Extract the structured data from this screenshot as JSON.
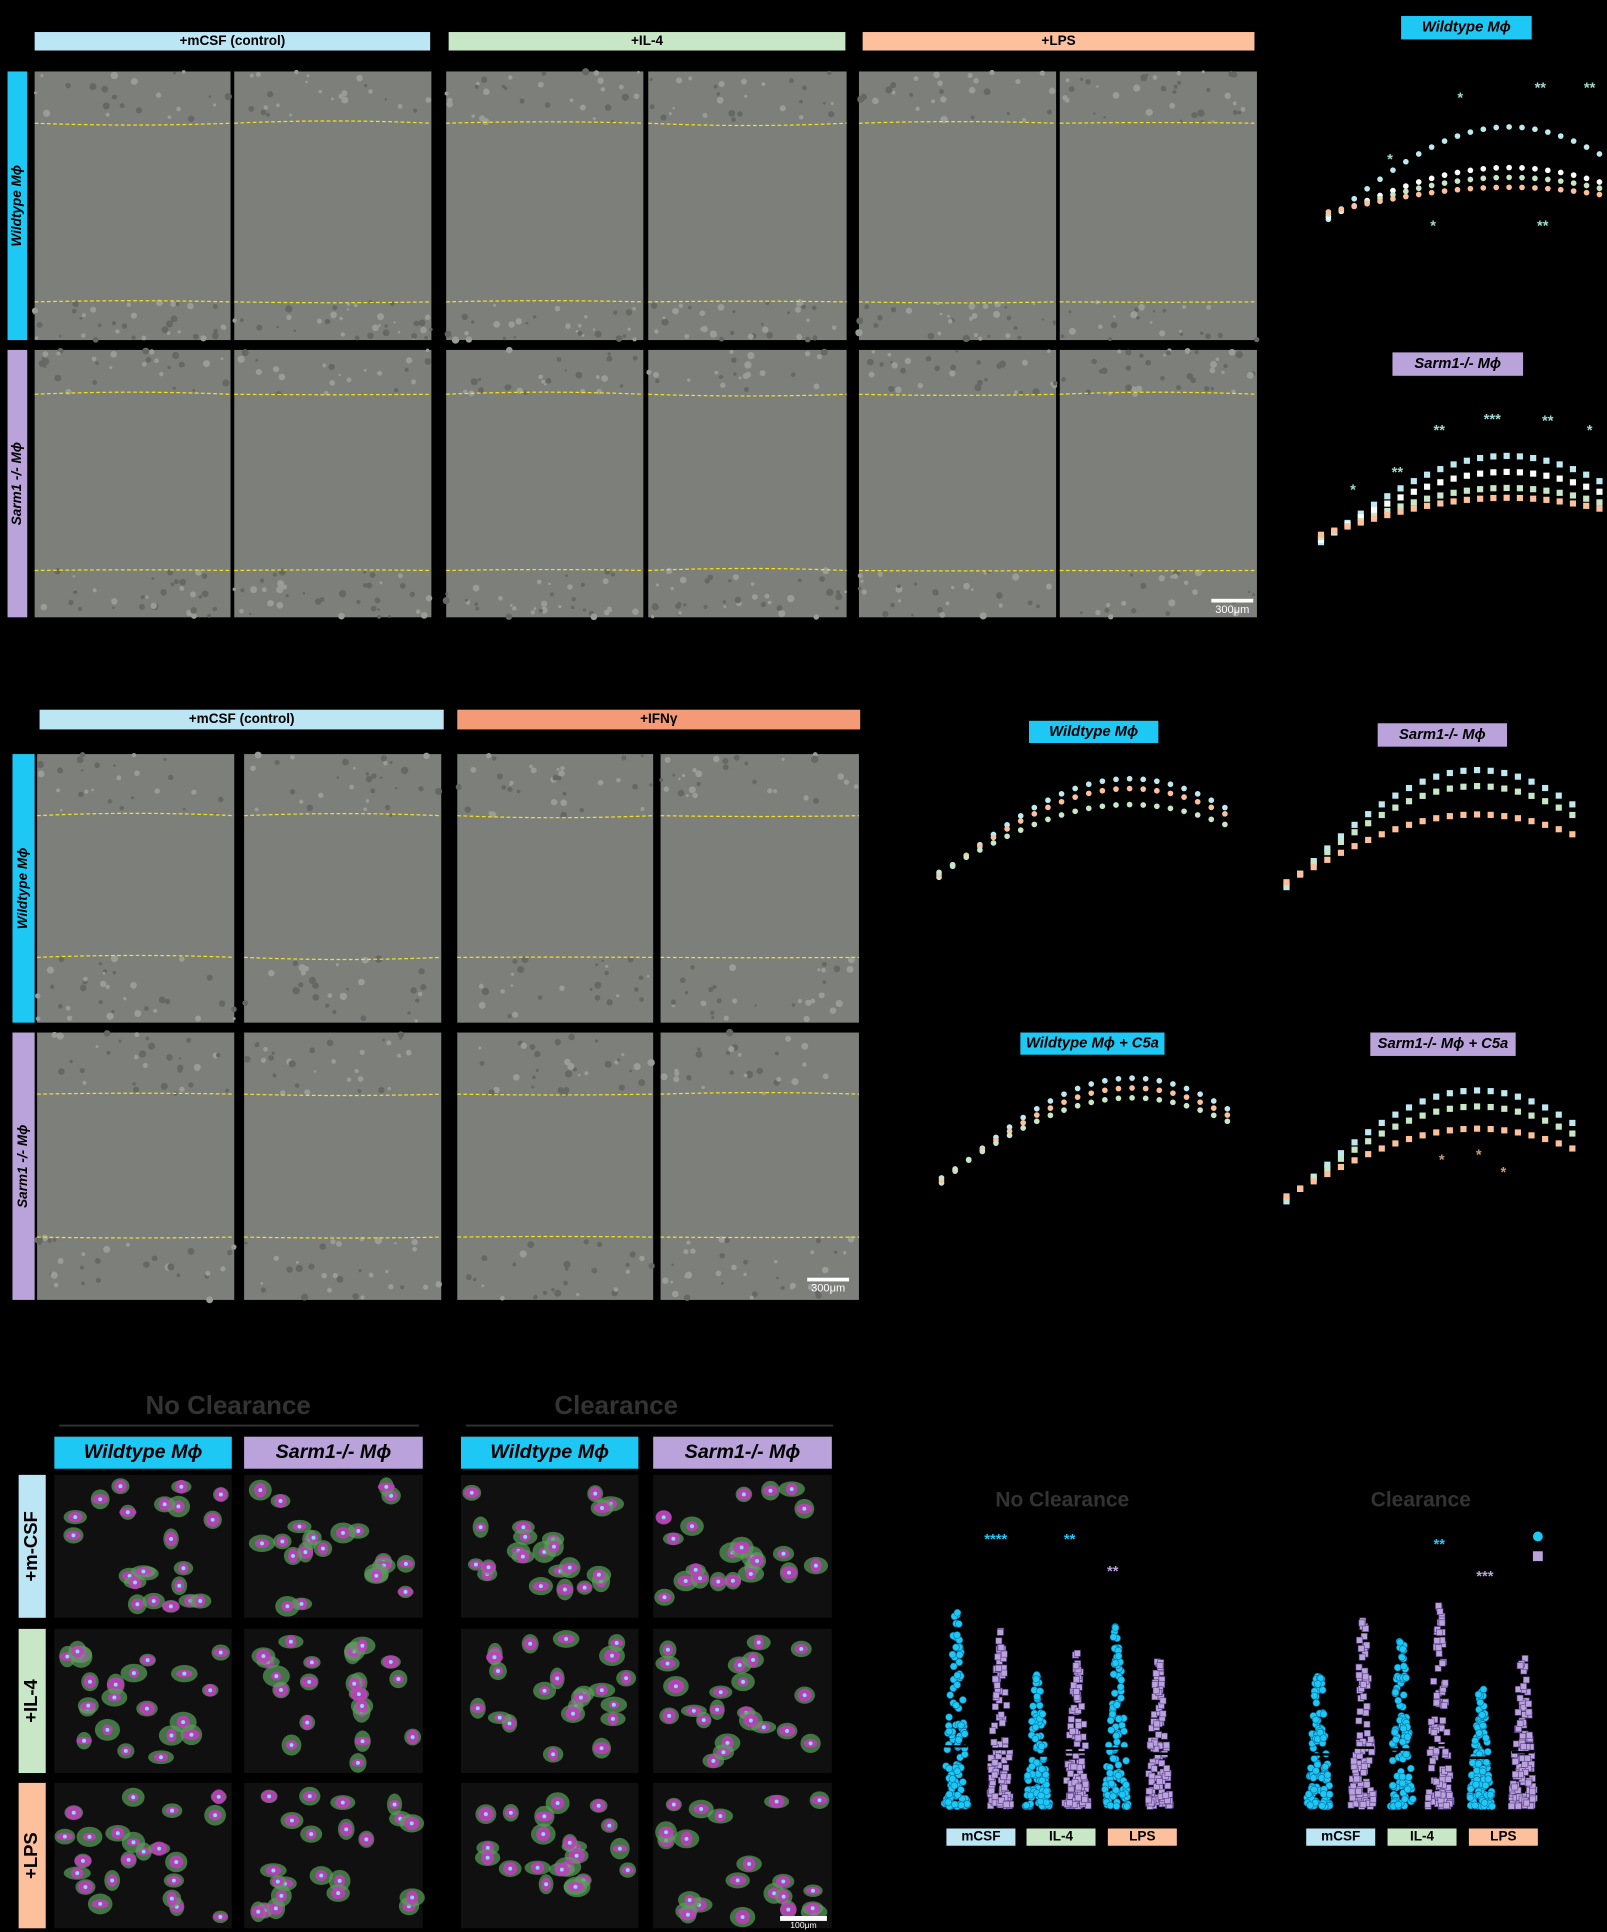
{
  "panel_a": {
    "headers": [
      "+mCSF (control)",
      "+IL-4",
      "+LPS"
    ],
    "rows": [
      "Wildtype Mϕ",
      "Sarm1 -/- Mϕ"
    ],
    "scale_bar": "300μm",
    "charts": [
      {
        "title": "Wildtype Mϕ",
        "annotations": [
          "*",
          "*",
          "**",
          "*",
          "**",
          "**"
        ]
      },
      {
        "title": "Sarm1-/- Mϕ",
        "annotations": [
          "**",
          "***",
          "**",
          "**",
          "*",
          "*"
        ]
      }
    ]
  },
  "panel_b": {
    "headers": [
      "+mCSF (control)",
      "+IFNγ"
    ],
    "rows": [
      "Wildtype Mϕ",
      "Sarm1 -/- Mϕ"
    ],
    "scale_bar": "300μm",
    "charts": [
      {
        "title": "Wildtype Mϕ"
      },
      {
        "title": "Sarm1-/- Mϕ"
      },
      {
        "title": "Wildtype Mϕ + C5a"
      },
      {
        "title": "Sarm1-/- Mϕ + C5a",
        "annotations": [
          "*",
          "*",
          "*"
        ]
      }
    ]
  },
  "panel_c": {
    "groups": [
      "No Clearance",
      "Clearance"
    ],
    "columns": [
      "Wildtype Mϕ",
      "Sarm1-/- Mϕ",
      "Wildtype Mϕ",
      "Sarm1-/- Mϕ"
    ],
    "rows": [
      "+m-CSF",
      "+IL-4",
      "+LPS"
    ],
    "scale_bar": "100μm",
    "charts": [
      {
        "title": "No Clearance",
        "annotations": [
          "****",
          "**",
          "**"
        ],
        "categories": [
          "mCSF",
          "IL-4",
          "LPS"
        ]
      },
      {
        "title": "Clearance",
        "annotations": [
          "**",
          "***"
        ],
        "categories": [
          "mCSF",
          "IL-4",
          "LPS"
        ]
      }
    ]
  }
}
